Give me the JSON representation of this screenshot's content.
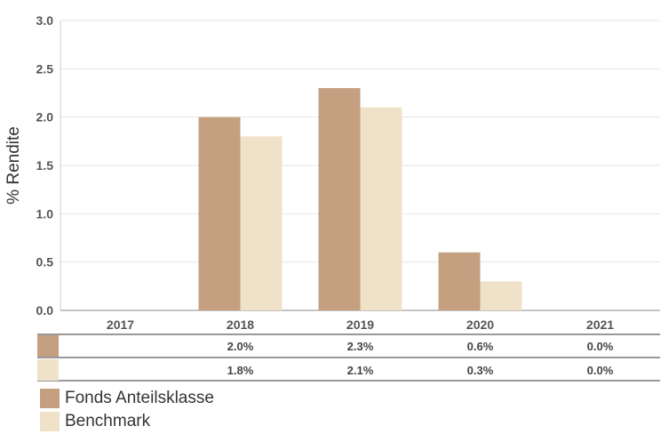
{
  "chart_data": {
    "type": "bar",
    "categories": [
      "2017",
      "2018",
      "2019",
      "2020",
      "2021"
    ],
    "series": [
      {
        "name": "Fonds Anteilsklasse",
        "color": "#c4a080",
        "values": [
          null,
          2.0,
          2.3,
          0.6,
          0.0
        ]
      },
      {
        "name": "Benchmark",
        "color": "#efe2c8",
        "values": [
          null,
          1.8,
          2.1,
          0.3,
          0.0
        ]
      }
    ],
    "ylabel": "% Rendite",
    "ylim": [
      0,
      3.0
    ],
    "yticks": [
      "0.0",
      "0.5",
      "1.0",
      "1.5",
      "2.0",
      "2.5",
      "3.0"
    ],
    "grid": true,
    "table": [
      [
        "",
        "2.0%",
        "2.3%",
        "0.6%",
        "0.0%"
      ],
      [
        "",
        "1.8%",
        "2.1%",
        "0.3%",
        "0.0%"
      ]
    ]
  },
  "legend": {
    "items": [
      {
        "label": "Fonds Anteilsklasse",
        "color": "#c4a080"
      },
      {
        "label": "Benchmark",
        "color": "#efe2c8"
      }
    ]
  }
}
